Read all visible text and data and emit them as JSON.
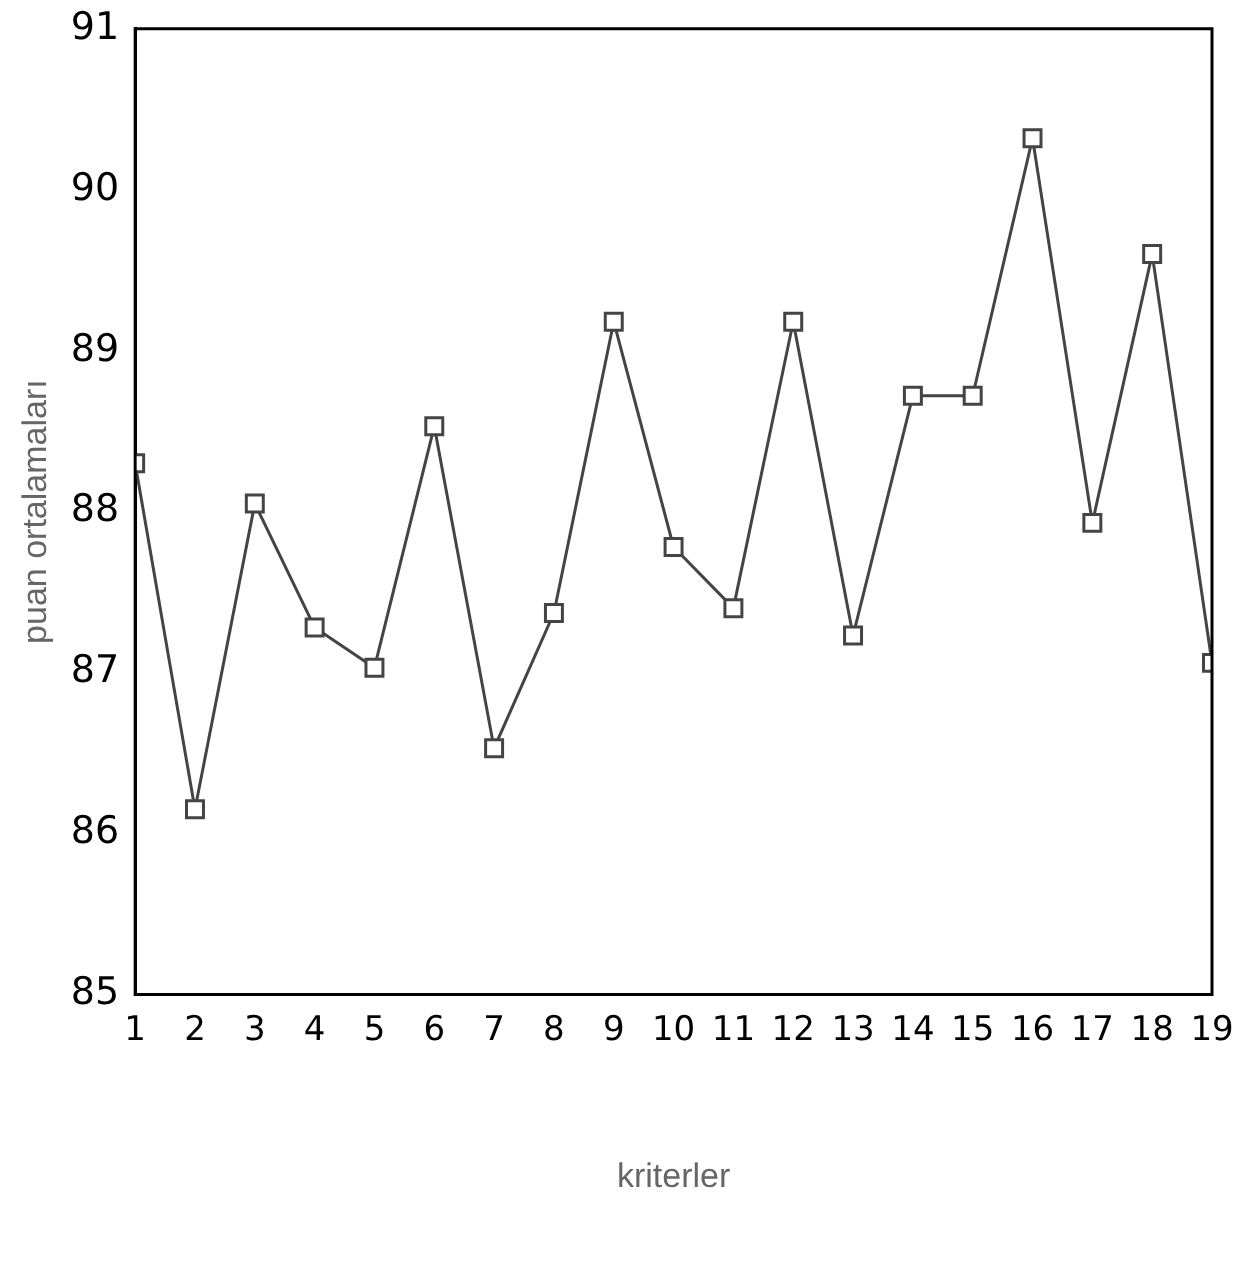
{
  "chart_data": {
    "type": "line",
    "xlabel": "kriterler",
    "ylabel": "puan ortalamaları",
    "x": [
      1,
      2,
      3,
      4,
      5,
      6,
      7,
      8,
      9,
      10,
      11,
      12,
      13,
      14,
      15,
      16,
      17,
      18,
      19
    ],
    "values": [
      88.3,
      86.15,
      88.05,
      87.28,
      87.03,
      88.53,
      86.53,
      87.37,
      89.18,
      87.78,
      87.4,
      89.18,
      87.23,
      88.72,
      88.72,
      90.32,
      87.93,
      89.6,
      87.06
    ],
    "color": "#444444",
    "marker": "square",
    "line_style": "solid",
    "grid": false,
    "legend": false,
    "xlim": [
      1,
      19
    ],
    "xticks": [
      1,
      2,
      3,
      4,
      5,
      6,
      7,
      8,
      9,
      10,
      11,
      12,
      13,
      14,
      15,
      16,
      17,
      18,
      19
    ],
    "ylim": [
      85,
      91
    ],
    "yticks": [
      85,
      86,
      87,
      88,
      89,
      90,
      91
    ]
  }
}
